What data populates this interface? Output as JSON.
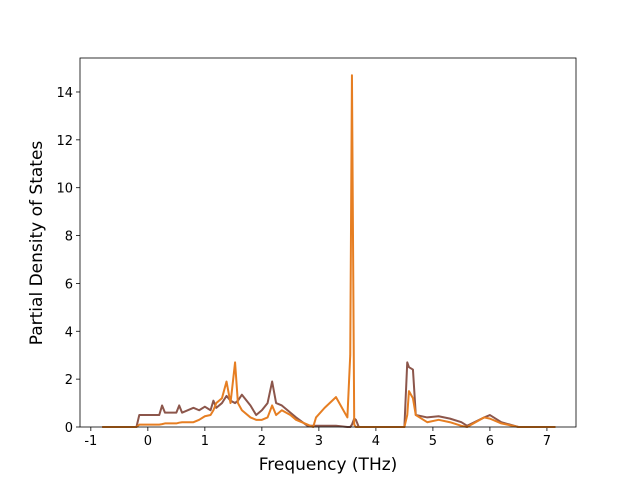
{
  "chart_data": {
    "type": "line",
    "xlabel": "Frequency (THz)",
    "ylabel": "Partial Density of States",
    "x": [
      -0.8,
      -0.2,
      -0.15,
      0.2,
      0.25,
      0.3,
      0.5,
      0.55,
      0.6,
      0.8,
      0.9,
      1.0,
      1.1,
      1.15,
      1.2,
      1.3,
      1.38,
      1.45,
      1.53,
      1.58,
      1.65,
      1.8,
      1.9,
      2.0,
      2.1,
      2.18,
      2.25,
      2.35,
      2.5,
      2.6,
      2.8,
      2.9,
      2.95,
      3.1,
      3.3,
      3.5,
      3.55,
      3.58,
      3.62,
      3.65,
      3.7,
      4.5,
      4.55,
      4.58,
      4.65,
      4.7,
      4.9,
      5.1,
      5.3,
      5.5,
      5.6,
      5.9,
      6.0,
      6.2,
      6.5,
      7.15
    ],
    "series": [
      {
        "color": "#8c564b",
        "values": [
          0,
          0,
          0.5,
          0.5,
          0.9,
          0.6,
          0.6,
          0.9,
          0.6,
          0.8,
          0.7,
          0.85,
          0.7,
          1.1,
          0.8,
          1.0,
          1.3,
          1.1,
          1.0,
          1.1,
          1.35,
          0.9,
          0.5,
          0.7,
          1.0,
          1.9,
          1.0,
          0.9,
          0.6,
          0.4,
          0.05,
          0.05,
          0.05,
          0.05,
          0.05,
          0,
          0,
          0.1,
          0.35,
          0.3,
          0,
          0,
          2.7,
          2.5,
          2.4,
          0.5,
          0.4,
          0.45,
          0.35,
          0.2,
          0.05,
          0.4,
          0.5,
          0.2,
          0,
          0
        ]
      },
      {
        "color": "#e67e22",
        "values": [
          0,
          0,
          0.1,
          0.1,
          0.12,
          0.15,
          0.15,
          0.18,
          0.2,
          0.2,
          0.3,
          0.45,
          0.5,
          0.7,
          1.0,
          1.2,
          1.9,
          1.0,
          2.7,
          1.0,
          0.7,
          0.4,
          0.3,
          0.3,
          0.4,
          0.9,
          0.5,
          0.7,
          0.5,
          0.3,
          0.1,
          0,
          0.4,
          0.8,
          1.25,
          0.4,
          3.0,
          14.7,
          0.1,
          0,
          0,
          0,
          0.5,
          1.5,
          1.2,
          0.5,
          0.2,
          0.3,
          0.2,
          0.05,
          0,
          0.4,
          0.35,
          0.15,
          0,
          0
        ]
      }
    ],
    "xlim": [
      -1.19,
      7.51
    ],
    "ylim": [
      0,
      15.42
    ],
    "xticks": [
      -1,
      0,
      1,
      2,
      3,
      4,
      5,
      6,
      7
    ],
    "yticks": [
      0,
      2,
      4,
      6,
      8,
      10,
      12,
      14
    ]
  }
}
